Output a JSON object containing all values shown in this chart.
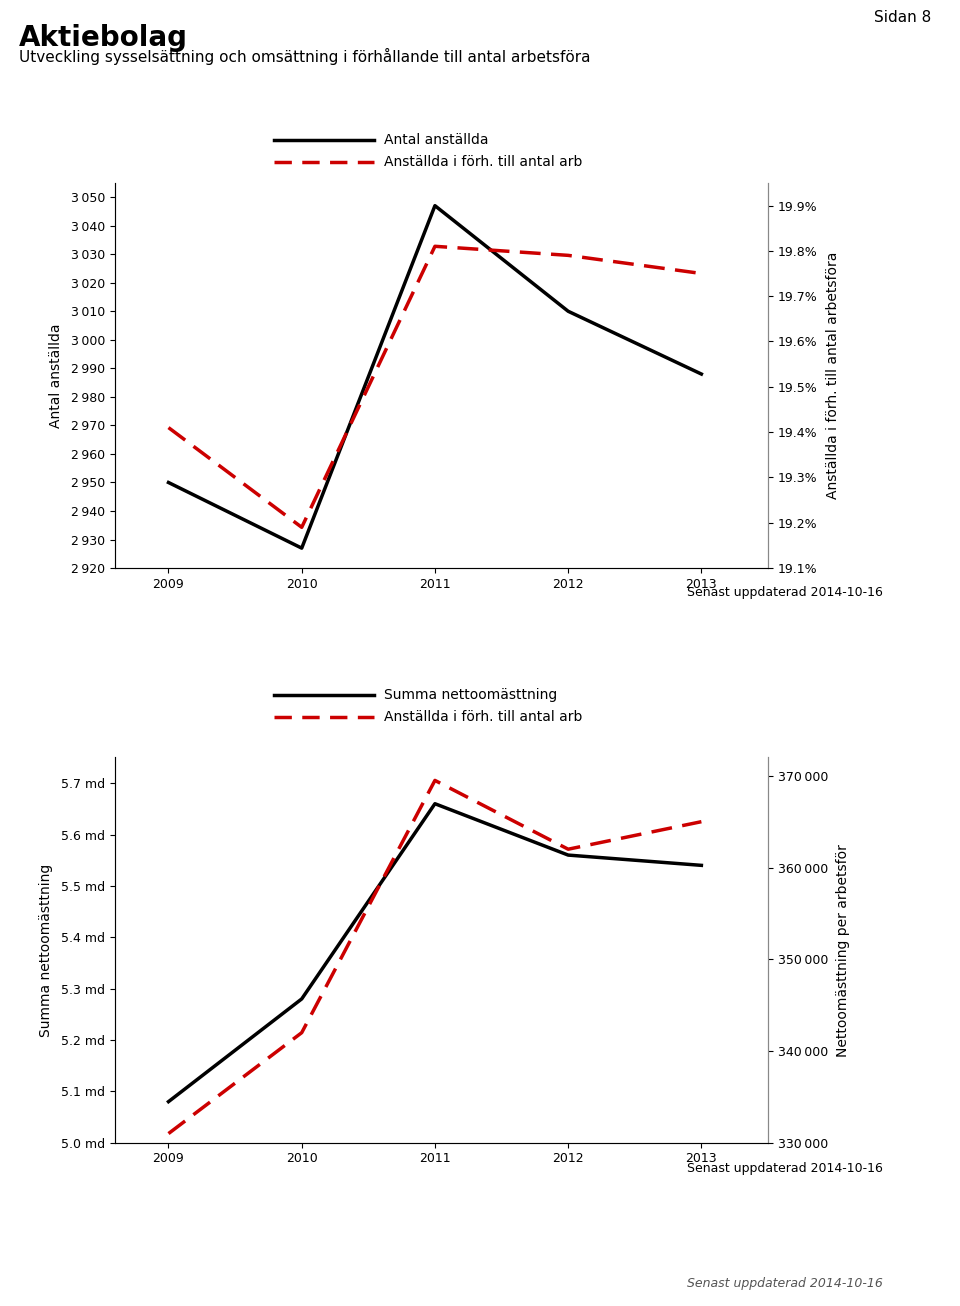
{
  "title": "Aktiebolag",
  "subtitle": "Utveckling sysselsättning och omsättning i förhållande till antal arbetsföra",
  "page_label": "Sidan 8",
  "update_date": "Senast uppdaterad 2014-10-16",
  "chart1": {
    "years": [
      2009,
      2010,
      2011,
      2012,
      2013
    ],
    "left_line": [
      2950,
      2927,
      3047,
      3010,
      2988
    ],
    "right_line": [
      19.41,
      19.19,
      19.81,
      19.79,
      19.75
    ],
    "left_label": "Antal anställda",
    "right_label": "Anställda i förh. till antal arb",
    "ylabel_left": "Antal anställda",
    "ylabel_right": "Anställda i förh. till antal arbetsföra",
    "ylim_left": [
      2920,
      3055
    ],
    "ylim_right": [
      19.1,
      19.95
    ],
    "yticks_left": [
      2920,
      2930,
      2940,
      2950,
      2960,
      2970,
      2980,
      2990,
      3000,
      3010,
      3020,
      3030,
      3040,
      3050
    ],
    "yticks_right": [
      19.1,
      19.2,
      19.3,
      19.4,
      19.5,
      19.6,
      19.7,
      19.8,
      19.9
    ]
  },
  "chart2": {
    "years": [
      2009,
      2010,
      2011,
      2012,
      2013
    ],
    "left_line": [
      5.08,
      5.28,
      5.66,
      5.56,
      5.54
    ],
    "right_line": [
      331000,
      342000,
      369500,
      362000,
      365000
    ],
    "left_label": "Summa nettoomästtning",
    "right_label": "Anställda i förh. till antal arb",
    "ylabel_left": "Summa nettoomästtning",
    "ylabel_right": "Nettoomästtning per arbetsför",
    "ylim_left": [
      5.0,
      5.75
    ],
    "ylim_right": [
      330000,
      372000
    ],
    "yticks_left": [
      5.0,
      5.1,
      5.2,
      5.3,
      5.4,
      5.5,
      5.6,
      5.7
    ],
    "yticks_right": [
      330000,
      340000,
      350000,
      360000,
      370000
    ]
  },
  "line_color_solid": "#000000",
  "line_color_dashed": "#cc0000",
  "line_width": 2.5,
  "bg_color": "#ffffff",
  "plot_bg_color": "#ffffff",
  "font_family": "DejaVu Sans"
}
